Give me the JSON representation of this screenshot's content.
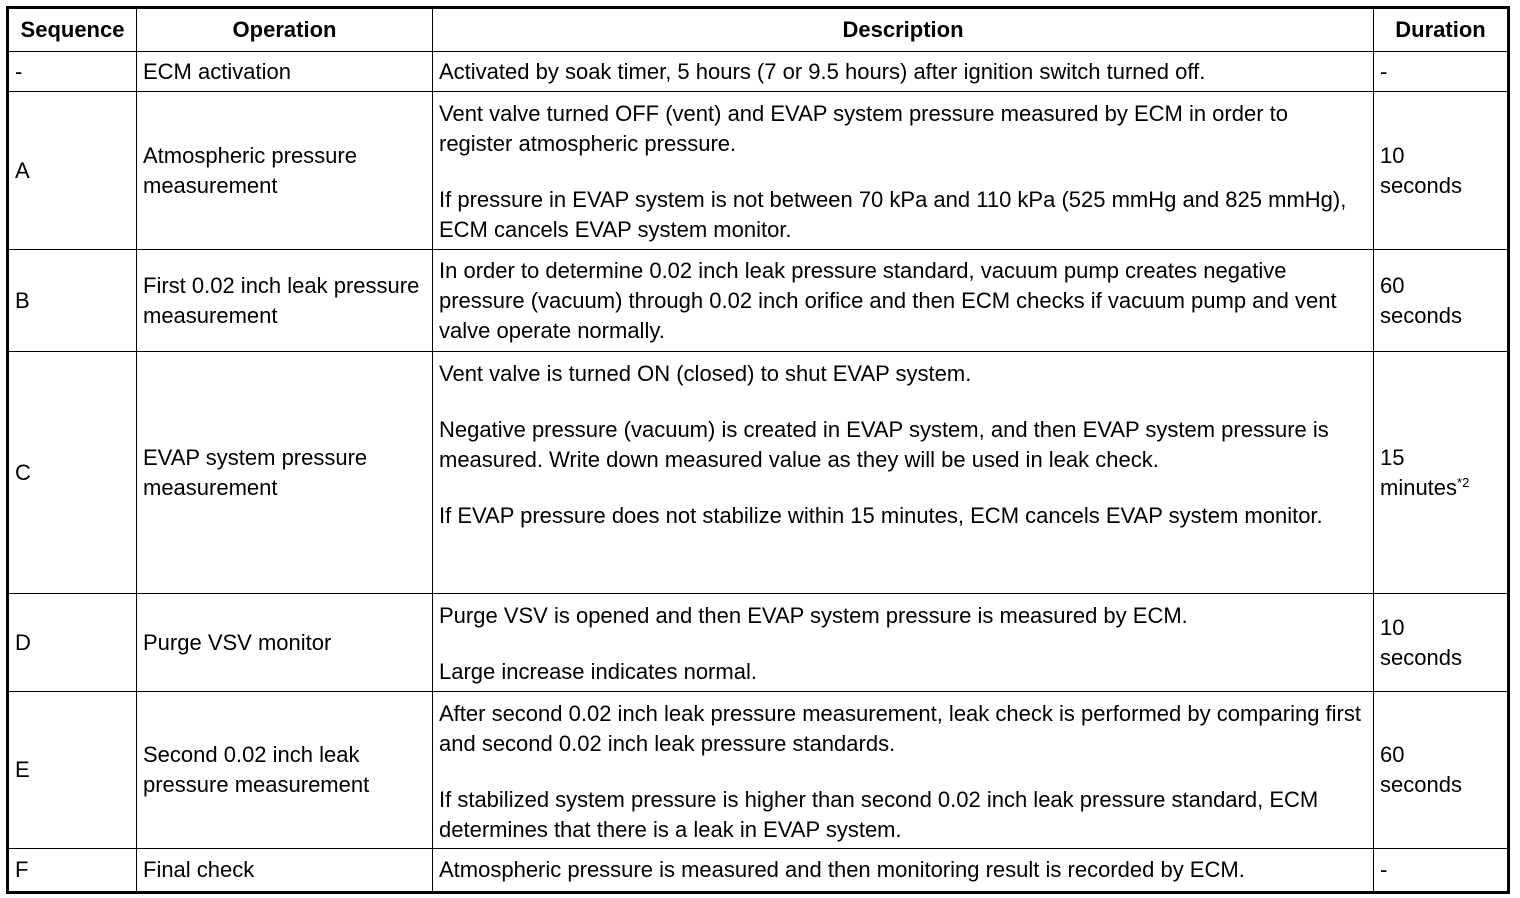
{
  "table": {
    "header": [
      "Sequence",
      "Operation",
      "Description",
      "Duration"
    ],
    "rows": [
      {
        "sequence": "-",
        "operation": "ECM activation",
        "description": [
          "Activated by soak timer, 5 hours (7 or 9.5 hours) after ignition switch turned off."
        ],
        "duration": "-"
      },
      {
        "sequence": "A",
        "operation": "Atmospheric pressure measurement",
        "description": [
          "Vent valve turned OFF (vent) and EVAP system pressure measured by ECM in order to register atmospheric pressure.",
          "If pressure in EVAP system is not between 70 kPa and 110 kPa (525 mmHg and 825 mmHg), ECM cancels EVAP system monitor."
        ],
        "duration": "10 seconds"
      },
      {
        "sequence": "B",
        "operation": "First 0.02 inch leak pressure measurement",
        "description": [
          "In order to determine 0.02 inch leak pressure standard, vacuum pump creates negative pressure (vacuum) through 0.02 inch orifice and then ECM checks if vacuum pump and vent valve operate normally."
        ],
        "duration": "60 seconds"
      },
      {
        "sequence": "C",
        "operation": "EVAP system pressure measurement",
        "description": [
          "Vent valve is turned ON (closed) to shut EVAP system.",
          "Negative pressure (vacuum) is created in EVAP system, and then EVAP system pressure is measured. Write down measured value as they will be used in leak check.",
          "If EVAP pressure does not stabilize within 15 minutes, ECM cancels EVAP system monitor."
        ],
        "duration": "15 minutes",
        "duration_note": "*2"
      },
      {
        "sequence": "D",
        "operation": "Purge VSV monitor",
        "description": [
          "Purge VSV is opened and then EVAP system pressure is measured by ECM.",
          "Large increase indicates normal."
        ],
        "duration": "10 seconds"
      },
      {
        "sequence": "E",
        "operation": "Second 0.02 inch leak pressure measurement",
        "description": [
          "After second 0.02 inch leak pressure measurement, leak check is performed by comparing first and second 0.02 inch leak pressure standards.",
          "If stabilized system pressure is higher than second 0.02 inch leak pressure standard, ECM determines that there is a leak in EVAP system."
        ],
        "duration": "60 seconds"
      },
      {
        "sequence": "F",
        "operation": "Final check",
        "description": [
          "Atmospheric pressure is measured and then monitoring result is recorded by ECM."
        ],
        "duration": "-"
      }
    ]
  }
}
